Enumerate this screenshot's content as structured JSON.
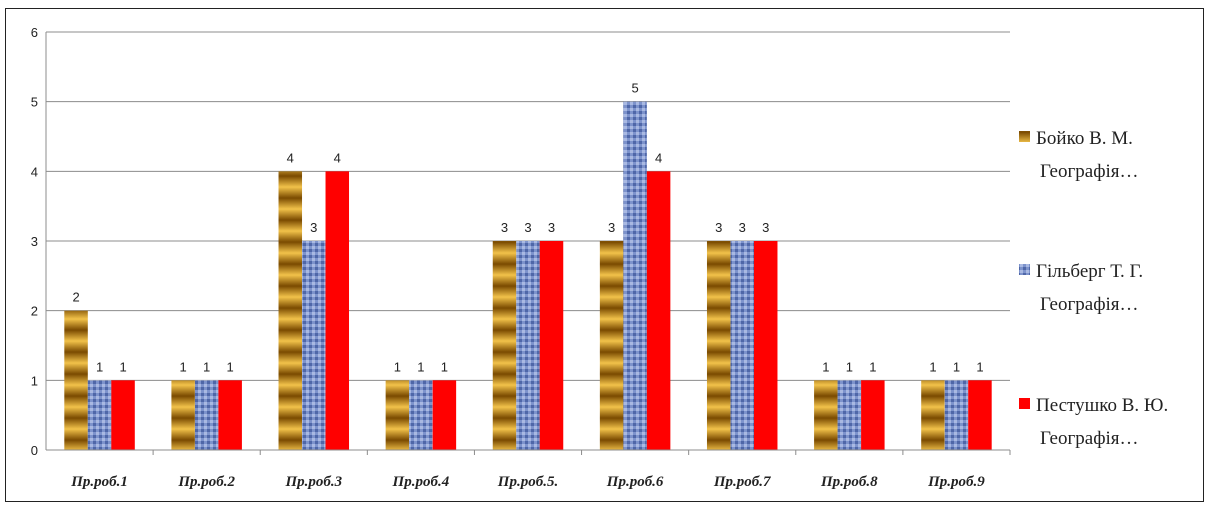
{
  "chart_data": {
    "type": "bar",
    "categories": [
      "Пр.роб.1",
      "Пр.роб.2",
      "Пр.роб.3",
      "Пр.роб.4",
      "Пр.роб.5.",
      "Пр.роб.6",
      "Пр.роб.7",
      "Пр.роб.8",
      "Пр.роб.9"
    ],
    "series": [
      {
        "name": "Бойко В. М. Географія…",
        "legend_lines": [
          "Бойко В. М.",
          "Географія…"
        ],
        "values": [
          2,
          1,
          4,
          1,
          3,
          3,
          3,
          1,
          1
        ],
        "color": "#c8860a"
      },
      {
        "name": "Гільберг Т. Г. Географія…",
        "legend_lines": [
          "Гільберг Т. Г.",
          "Географія…"
        ],
        "values": [
          1,
          1,
          3,
          1,
          3,
          5,
          3,
          1,
          1
        ],
        "color": "#6f86c2"
      },
      {
        "name": "Пестушко В. Ю. Географія…",
        "legend_lines": [
          "Пестушко В. Ю.",
          "Географія…"
        ],
        "values": [
          1,
          1,
          4,
          1,
          3,
          4,
          3,
          1,
          1
        ],
        "color": "#ff0000"
      }
    ],
    "yticks": [
      0,
      1,
      2,
      3,
      4,
      5,
      6
    ],
    "ylim": [
      0,
      6
    ],
    "grid": true,
    "legend": "right",
    "data_labels": true
  }
}
